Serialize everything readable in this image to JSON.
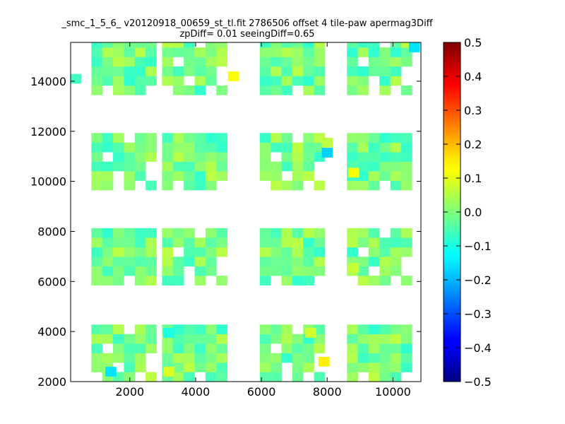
{
  "title": "_smc_1_5_6_ v20120918_00659_st_tl.fit 2786506 offset 4 tile-paw apermag3Diff",
  "subtitle": "zpDiff= 0.01 seeingDiff=0.65",
  "chart_data": {
    "type": "heatmap",
    "xlim": [
      200,
      10850
    ],
    "ylim": [
      2000,
      15550
    ],
    "x_ticks": [
      2000,
      4000,
      6000,
      8000,
      10000
    ],
    "y_ticks": [
      2000,
      4000,
      6000,
      8000,
      10000,
      12000,
      14000
    ],
    "cell_size": [
      330,
      380
    ],
    "colorbar": {
      "min": -0.5,
      "max": 0.5,
      "ticks": [
        0.5,
        0.4,
        0.3,
        0.2,
        0.1,
        0.0,
        -0.1,
        -0.2,
        -0.3,
        -0.4,
        -0.5
      ],
      "tick_labels": [
        "0.5",
        "0.4",
        "0.3",
        "0.2",
        "0.1",
        "0.0",
        "−0.1",
        "−0.2",
        "−0.3",
        "−0.4",
        "−0.5"
      ],
      "colormap": "jet"
    },
    "grid": false,
    "tiles": {
      "x_starts": [
        830,
        2980,
        5950,
        8600
      ],
      "y_starts": [
        2000,
        5850,
        9650,
        13450
      ],
      "cols": 6,
      "rows": 6
    },
    "holes": [
      [
        1,
        2
      ],
      [
        2,
        5
      ],
      [
        5,
        3
      ],
      [
        1,
        5
      ],
      [
        3,
        1
      ],
      [
        0,
        4
      ]
    ],
    "special_values": [
      {
        "x": 8000,
        "y": 11150,
        "value": -0.17
      },
      {
        "x": 8000,
        "y": 11550,
        "value": 0.06
      },
      {
        "x": 7900,
        "y": 2800,
        "value": 0.14
      },
      {
        "x": 3180,
        "y": 2400,
        "value": 0.09
      },
      {
        "x": 5150,
        "y": 14200,
        "value": 0.12
      },
      {
        "x": 10650,
        "y": 15350,
        "value": -0.15
      },
      {
        "x": 1420,
        "y": 2400,
        "value": -0.15
      },
      {
        "x": 8800,
        "y": 10350,
        "value": 0.12
      },
      {
        "x": 8800,
        "y": 6550,
        "value": 0.07
      },
      {
        "x": 350,
        "y": 14100,
        "value": -0.06
      },
      {
        "x": 3180,
        "y": 3950,
        "value": -0.1
      },
      {
        "x": 7500,
        "y": 3950,
        "value": 0.08
      }
    ]
  }
}
